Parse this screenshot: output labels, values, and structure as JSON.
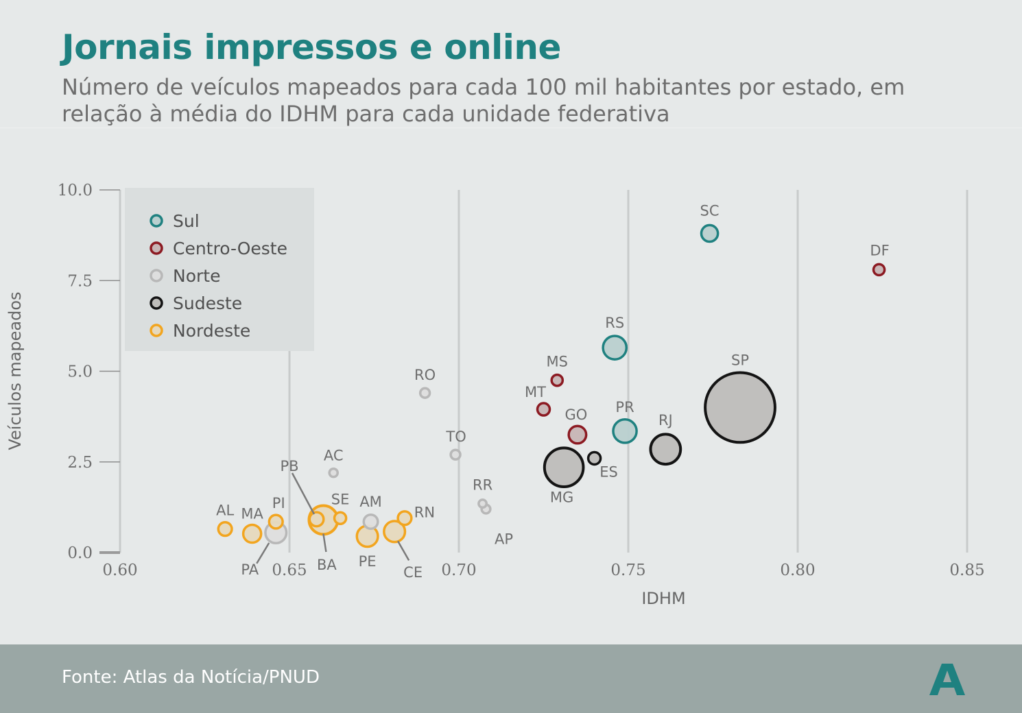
{
  "title": "Jornais impressos e online",
  "subtitle": "Número de veículos mapeados para cada 100 mil habitantes por estado, em relação à média do IDHM para cada unidade federativa",
  "source": "Fonte: Atlas da Notícia/PNUD",
  "logo_letter": "A",
  "chart_data": {
    "type": "scatter",
    "bubble": true,
    "xlabel": "IDHM",
    "ylabel": "Veículos mapeados",
    "xlim": [
      0.6,
      0.85
    ],
    "ylim": [
      0,
      10
    ],
    "xticks": [
      "0.60",
      "0.65",
      "0.70",
      "0.75",
      "0.80",
      "0.85"
    ],
    "yticks": [
      "0.0",
      "2.5",
      "5.0",
      "7.5",
      "10.0"
    ],
    "grid": "vertical",
    "legend_position": "top-left",
    "legend": [
      {
        "region": "Sul",
        "label": "Sul",
        "color": "#1f8180",
        "fill": "#b9d0cf"
      },
      {
        "region": "Centro-Oeste",
        "label": "Centro-Oeste",
        "color": "#8c1a22",
        "fill": "#c7b5b5"
      },
      {
        "region": "Norte",
        "label": "Norte",
        "color": "#b8b8b8",
        "fill": "#dedede"
      },
      {
        "region": "Sudeste",
        "label": "Sudeste",
        "color": "#141414",
        "fill": "#bebdba"
      },
      {
        "region": "Nordeste",
        "label": "Nordeste",
        "color": "#f2a51f",
        "fill": "#e6d9bd"
      }
    ],
    "points": [
      {
        "label": "SC",
        "region": "Sul",
        "x": 0.774,
        "y": 8.8,
        "size": 1.8
      },
      {
        "label": "RS",
        "region": "Sul",
        "x": 0.746,
        "y": 5.65,
        "size": 3.6
      },
      {
        "label": "PR",
        "region": "Sul",
        "x": 0.749,
        "y": 3.35,
        "size": 3.6
      },
      {
        "label": "DF",
        "region": "Centro-Oeste",
        "x": 0.824,
        "y": 7.8,
        "size": 0.8
      },
      {
        "label": "MS",
        "region": "Centro-Oeste",
        "x": 0.729,
        "y": 4.75,
        "size": 0.8
      },
      {
        "label": "MT",
        "region": "Centro-Oeste",
        "x": 0.725,
        "y": 3.95,
        "size": 1.0
      },
      {
        "label": "GO",
        "region": "Centro-Oeste",
        "x": 0.735,
        "y": 3.25,
        "size": 2.0
      },
      {
        "label": "RO",
        "region": "Norte",
        "x": 0.69,
        "y": 4.4,
        "size": 0.6
      },
      {
        "label": "TO",
        "region": "Norte",
        "x": 0.699,
        "y": 2.7,
        "size": 0.6
      },
      {
        "label": "AC",
        "region": "Norte",
        "x": 0.663,
        "y": 2.2,
        "size": 0.45
      },
      {
        "label": "AM",
        "region": "Norte",
        "x": 0.674,
        "y": 0.85,
        "size": 1.3
      },
      {
        "label": "RR",
        "region": "Norte",
        "x": 0.707,
        "y": 1.35,
        "size": 0.4
      },
      {
        "label": "AP",
        "region": "Norte",
        "x": 0.708,
        "y": 1.2,
        "size": 0.5
      },
      {
        "label": "PA",
        "region": "Norte",
        "x": 0.646,
        "y": 0.55,
        "size": 2.9
      },
      {
        "label": "SP",
        "region": "Sudeste",
        "x": 0.783,
        "y": 4.0,
        "size": 32
      },
      {
        "label": "MG",
        "region": "Sudeste",
        "x": 0.731,
        "y": 2.35,
        "size": 9.9
      },
      {
        "label": "RJ",
        "region": "Sudeste",
        "x": 0.761,
        "y": 2.85,
        "size": 5.9
      },
      {
        "label": "ES",
        "region": "Sudeste",
        "x": 0.74,
        "y": 2.6,
        "size": 1.0
      },
      {
        "label": "AL",
        "region": "Nordeste",
        "x": 0.631,
        "y": 0.65,
        "size": 1.2
      },
      {
        "label": "MA",
        "region": "Nordeste",
        "x": 0.639,
        "y": 0.52,
        "size": 2.1
      },
      {
        "label": "PI",
        "region": "Nordeste",
        "x": 0.646,
        "y": 0.85,
        "size": 1.2
      },
      {
        "label": "PB",
        "region": "Nordeste",
        "x": 0.658,
        "y": 0.92,
        "size": 1.3
      },
      {
        "label": "BA",
        "region": "Nordeste",
        "x": 0.66,
        "y": 0.9,
        "size": 5.4
      },
      {
        "label": "SE",
        "region": "Nordeste",
        "x": 0.665,
        "y": 0.95,
        "size": 0.9
      },
      {
        "label": "PE",
        "region": "Nordeste",
        "x": 0.673,
        "y": 0.45,
        "size": 2.9
      },
      {
        "label": "CE",
        "region": "Nordeste",
        "x": 0.681,
        "y": 0.58,
        "size": 2.9
      },
      {
        "label": "RN",
        "region": "Nordeste",
        "x": 0.684,
        "y": 0.95,
        "size": 1.2
      }
    ]
  }
}
